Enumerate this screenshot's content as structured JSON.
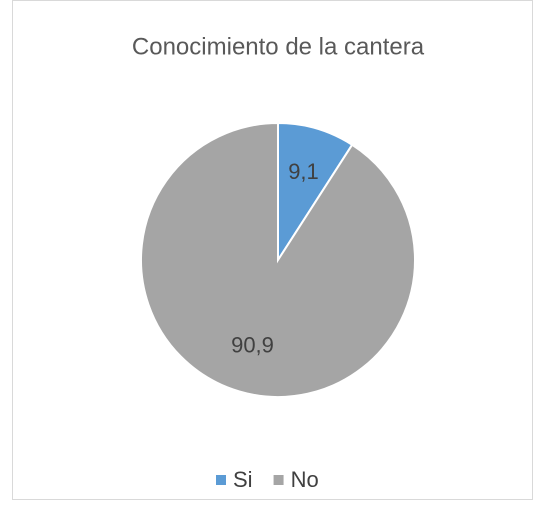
{
  "chart_data": {
    "type": "pie",
    "title": "Conocimiento de la cantera",
    "categories": [
      "Si",
      "No"
    ],
    "values": [
      9.1,
      90.9
    ],
    "value_labels": [
      "9,1",
      "90,9"
    ],
    "colors": [
      "#5b9bd5",
      "#a5a5a5"
    ],
    "legend": "bottom"
  }
}
